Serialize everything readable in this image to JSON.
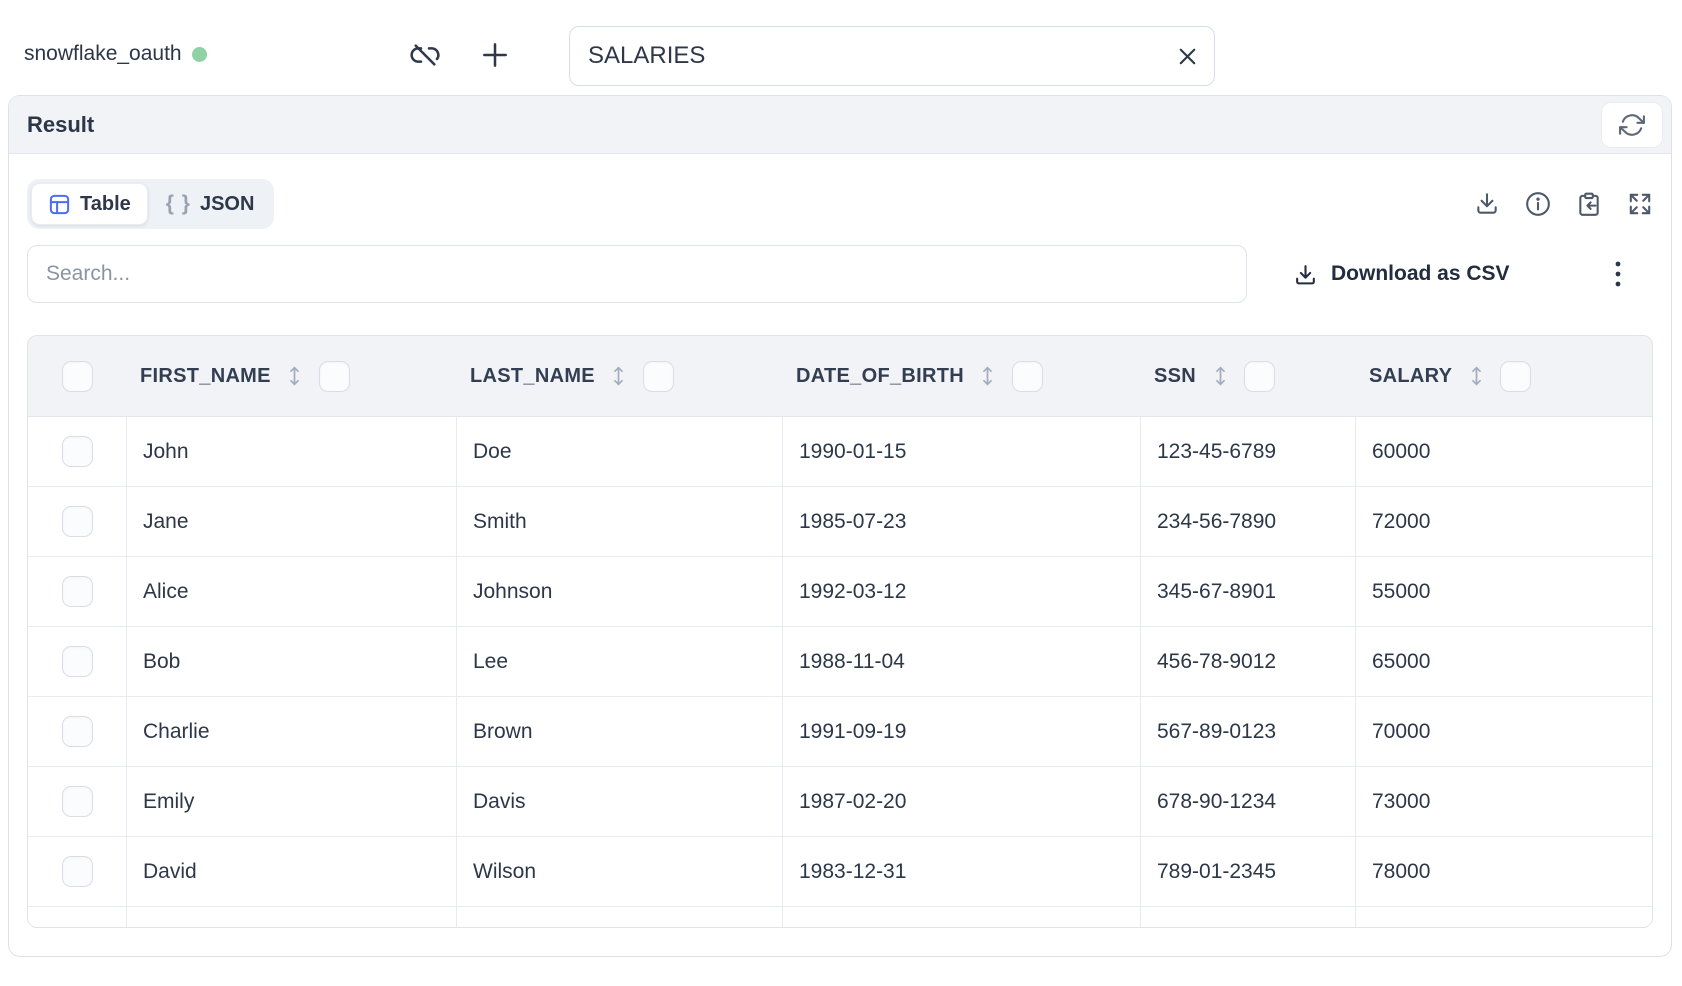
{
  "connection": {
    "name": "snowflake_oauth",
    "status": "connected",
    "status_color": "#8fd3a4"
  },
  "topbar": {
    "table_input_value": "SALARIES"
  },
  "result_panel": {
    "title": "Result"
  },
  "view_toggle": {
    "table_label": "Table",
    "json_label": "JSON",
    "json_icon": "{ }"
  },
  "toolbar": {
    "search_placeholder": "Search...",
    "download_csv_label": "Download as CSV"
  },
  "table": {
    "columns": [
      "FIRST_NAME",
      "LAST_NAME",
      "DATE_OF_BIRTH",
      "SSN",
      "SALARY"
    ],
    "rows": [
      [
        "John",
        "Doe",
        "1990-01-15",
        "123-45-6789",
        "60000"
      ],
      [
        "Jane",
        "Smith",
        "1985-07-23",
        "234-56-7890",
        "72000"
      ],
      [
        "Alice",
        "Johnson",
        "1992-03-12",
        "345-67-8901",
        "55000"
      ],
      [
        "Bob",
        "Lee",
        "1988-11-04",
        "456-78-9012",
        "65000"
      ],
      [
        "Charlie",
        "Brown",
        "1991-09-19",
        "567-89-0123",
        "70000"
      ],
      [
        "Emily",
        "Davis",
        "1987-02-20",
        "678-90-1234",
        "73000"
      ],
      [
        "David",
        "Wilson",
        "1983-12-31",
        "789-01-2345",
        "78000"
      ]
    ]
  },
  "icons": {
    "unlink": "link-off",
    "add": "plus",
    "clear": "x",
    "refresh": "refresh-cw",
    "table_view": "table-grid",
    "json_view": "curly-braces",
    "download": "download-tray",
    "info": "info-circle",
    "paste": "clipboard-arrow",
    "expand": "expand-arrows",
    "kebab": "vertical-dots",
    "sort": "up-down-arrows",
    "checkbox": "rounded-square"
  },
  "colors": {
    "accent_blue": "#4c6ef5",
    "status_green": "#8fd3a4",
    "text_primary": "#2c3748",
    "header_bg": "#f1f3f6",
    "panel_border": "#dde2e9",
    "cell_border": "#e8ebf0"
  }
}
